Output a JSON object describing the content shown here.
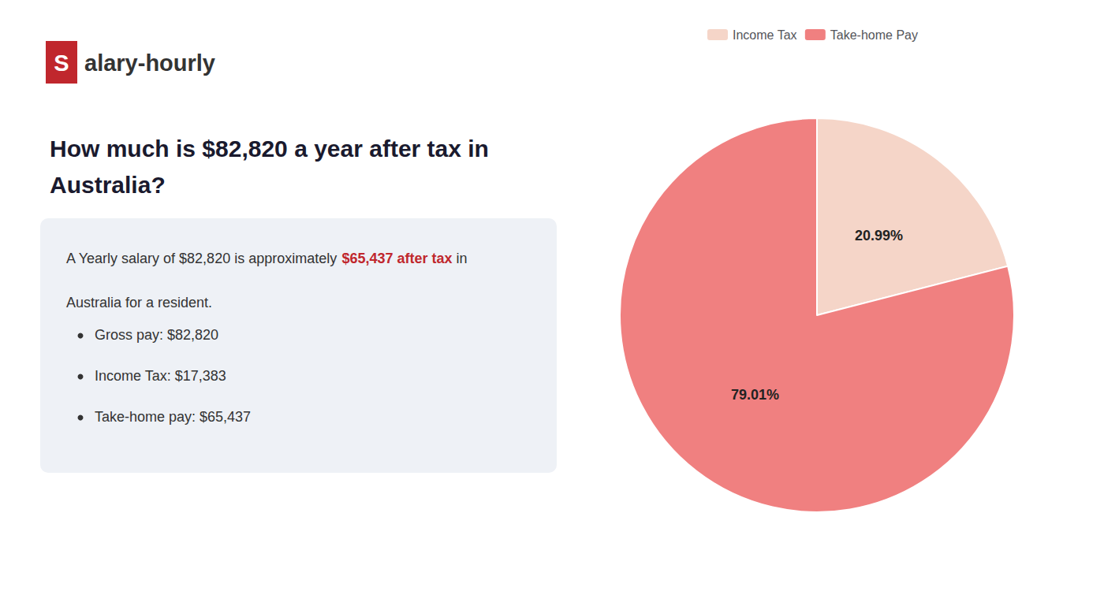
{
  "chart_data": {
    "type": "pie",
    "title": "How much is $82,820 a year after tax in\nAustralia?",
    "categories": [
      "Income Tax",
      "Take-home Pay"
    ],
    "values": [
      20.99,
      79.01
    ],
    "value_labels": [
      "20.99%",
      "79.01%"
    ],
    "colors": [
      "#f5d5c8",
      "#f08080"
    ],
    "data_labels": true,
    "legend": "top",
    "annotations": {
      "logo": [
        {
          "text": "S",
          "color": "#c0272d"
        },
        {
          "text": "alary-hourly"
        }
      ],
      "summary": [
        [
          {
            "text": "A Yearly salary of $82,820 is approximately "
          },
          {
            "text": "$65,437 after tax",
            "color": "#c0272d"
          },
          {
            "text": " in"
          }
        ],
        [
          {
            "text": "Australia for a resident."
          }
        ]
      ],
      "bullets": [
        "Gross pay: $82,820",
        "Income Tax: $17,383",
        "Take-home pay: $65,437"
      ]
    }
  }
}
